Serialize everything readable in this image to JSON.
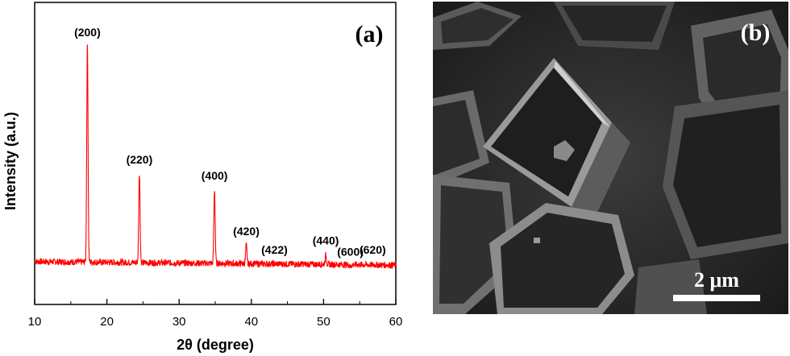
{
  "chart_data": {
    "type": "line",
    "panel_label": "(a)",
    "xlabel": "2θ (degree)",
    "ylabel": "Intensity (a.u.)",
    "xlim": [
      10,
      60
    ],
    "ylim": [
      0,
      1.0
    ],
    "xticks": [
      10,
      20,
      30,
      40,
      50,
      60
    ],
    "grid": false,
    "series": [
      {
        "color": "#ff0000",
        "baseline": 0.06,
        "peaks": [
          {
            "x": 17.3,
            "y": 1.0,
            "label": "(200)"
          },
          {
            "x": 24.5,
            "y": 0.45,
            "label": "(220)"
          },
          {
            "x": 34.9,
            "y": 0.38,
            "label": "(400)"
          },
          {
            "x": 39.3,
            "y": 0.14,
            "label": "(420)"
          },
          {
            "x": 43.2,
            "y": 0.06,
            "label": "(422)"
          },
          {
            "x": 50.3,
            "y": 0.1,
            "label": "(440)"
          },
          {
            "x": 53.7,
            "y": 0.05,
            "label": "(600)"
          },
          {
            "x": 56.8,
            "y": 0.06,
            "label": "(620)"
          }
        ]
      }
    ]
  },
  "sem": {
    "panel_label": "(b)",
    "scale_bar_label": "2 μm"
  }
}
